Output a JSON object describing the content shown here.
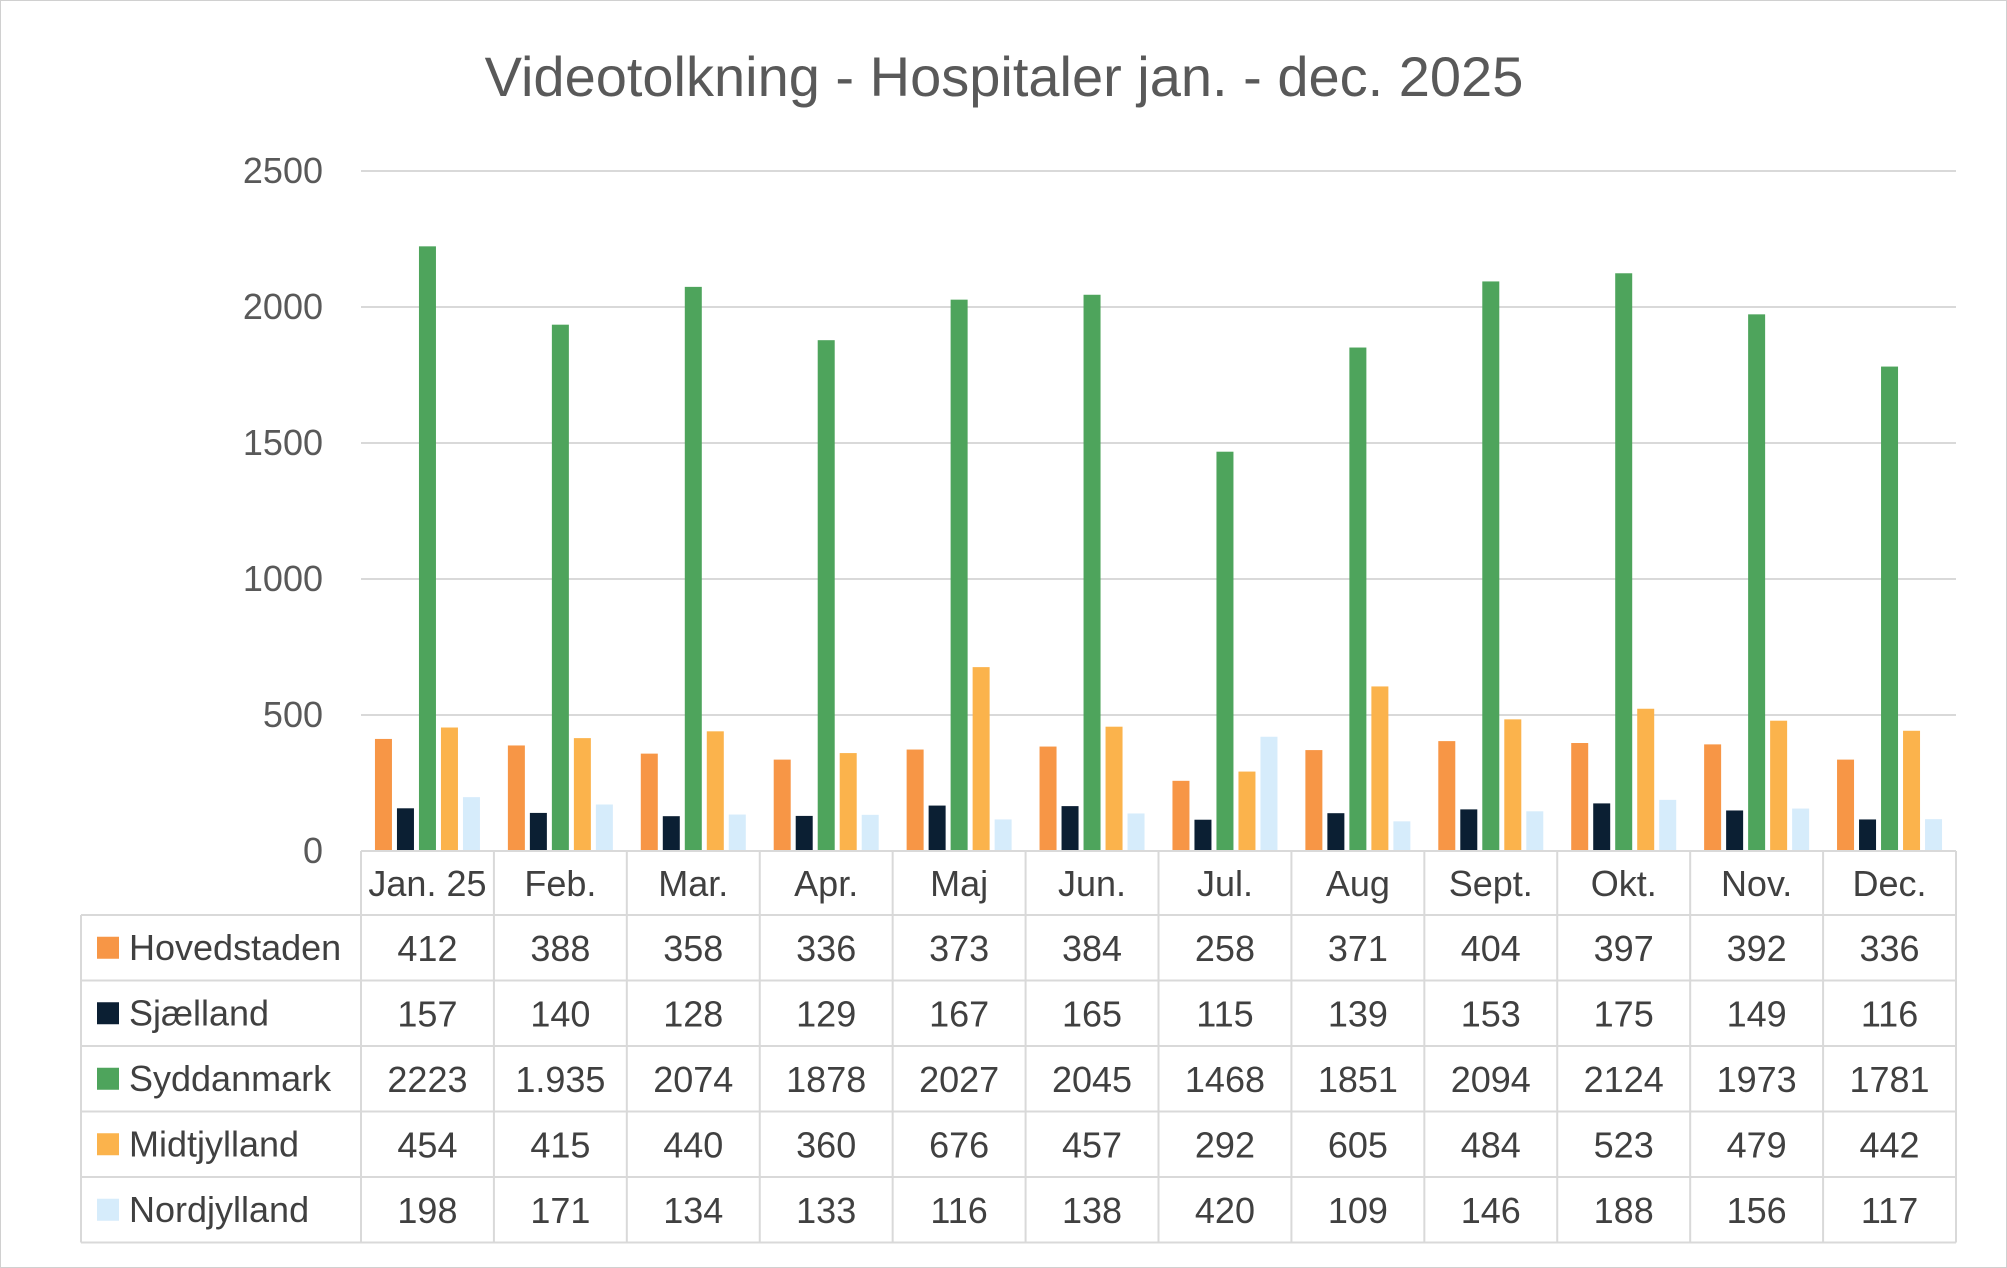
{
  "chart_data": {
    "type": "bar",
    "title": "Videotolkning - Hospitaler jan. - dec.  2025",
    "xlabel": "",
    "ylabel": "",
    "ylim": [
      0,
      2500
    ],
    "yticks": [
      "0",
      "500",
      "1000",
      "1500",
      "2000",
      "2500"
    ],
    "grid": true,
    "legend_placement": "table-left",
    "categories": [
      "Jan. 25",
      "Feb.",
      "Mar.",
      "Apr.",
      "Maj",
      "Jun.",
      "Jul.",
      "Aug",
      "Sept.",
      "Okt.",
      "Nov.",
      "Dec."
    ],
    "series": [
      {
        "name": "Hovedstaden",
        "color": "#F79646",
        "values": [
          412,
          388,
          358,
          336,
          373,
          384,
          258,
          371,
          404,
          397,
          392,
          336
        ],
        "labels": [
          "412",
          "388",
          "358",
          "336",
          "373",
          "384",
          "258",
          "371",
          "404",
          "397",
          "392",
          "336"
        ]
      },
      {
        "name": "Sjælland",
        "color": "#0B1F33",
        "values": [
          157,
          140,
          128,
          129,
          167,
          165,
          115,
          139,
          153,
          175,
          149,
          116
        ],
        "labels": [
          "157",
          "140",
          "128",
          "129",
          "167",
          "165",
          "115",
          "139",
          "153",
          "175",
          "149",
          "116"
        ]
      },
      {
        "name": "Syddanmark",
        "color": "#4EA45C",
        "values": [
          2223,
          1935,
          2074,
          1878,
          2027,
          2045,
          1468,
          1851,
          2094,
          2124,
          1973,
          1781
        ],
        "labels": [
          "2223",
          "1.935",
          "2074",
          "1878",
          "2027",
          "2045",
          "1468",
          "1851",
          "2094",
          "2124",
          "1973",
          "1781"
        ]
      },
      {
        "name": "Midtjylland",
        "color": "#FBB34C",
        "values": [
          454,
          415,
          440,
          360,
          676,
          457,
          292,
          605,
          484,
          523,
          479,
          442
        ],
        "labels": [
          "454",
          "415",
          "440",
          "360",
          "676",
          "457",
          "292",
          "605",
          "484",
          "523",
          "479",
          "442"
        ]
      },
      {
        "name": "Nordjylland",
        "color": "#D6ECFB",
        "values": [
          198,
          171,
          134,
          133,
          116,
          138,
          420,
          109,
          146,
          188,
          156,
          117
        ],
        "labels": [
          "198",
          "171",
          "134",
          "133",
          "116",
          "138",
          "420",
          "109",
          "146",
          "188",
          "156",
          "117"
        ]
      }
    ]
  }
}
